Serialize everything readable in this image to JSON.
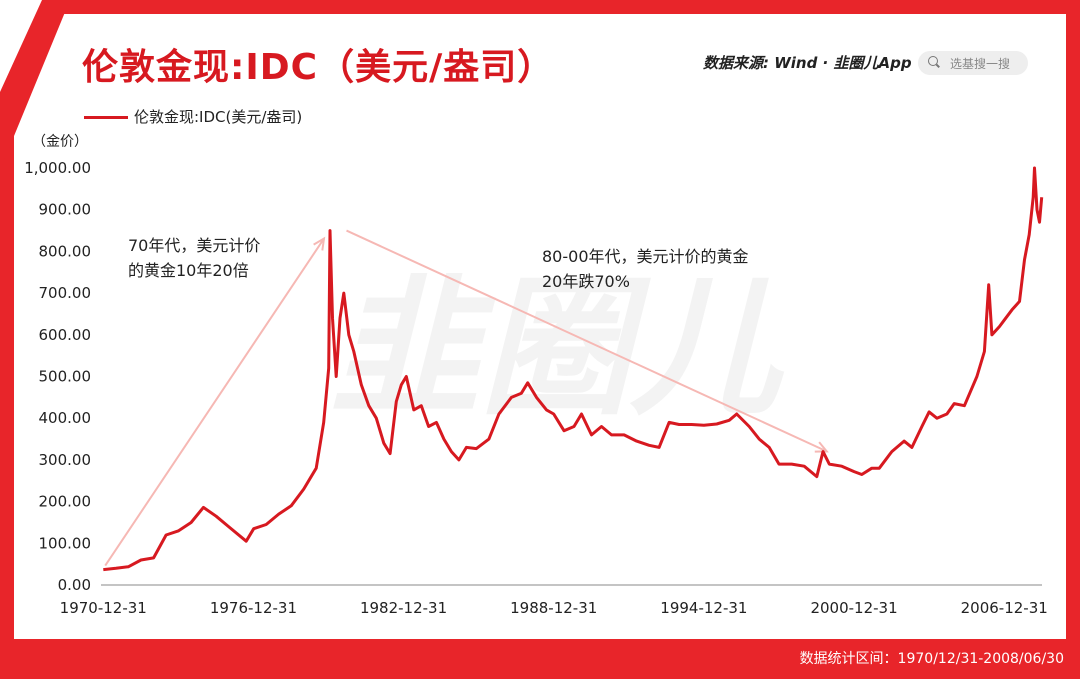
{
  "header": {
    "title": "伦敦金现:IDC（美元/盎司）",
    "source": "数据来源: Wind · 韭圈儿App",
    "search_placeholder": "选基搜一搜"
  },
  "footer": {
    "stat_range": "数据统计区间：1970/12/31-2008/06/30"
  },
  "watermark": "韭圈儿",
  "colors": {
    "accent": "#e8252a",
    "series": "#d71920",
    "annotation_arrow": "#f6b8b4"
  },
  "chart_data": {
    "type": "line",
    "legend": [
      "伦敦金现:IDC(美元/盎司)"
    ],
    "ylabel": "（金价）",
    "ylim": [
      0,
      1000
    ],
    "yticks": [
      "0.00",
      "100.00",
      "200.00",
      "300.00",
      "400.00",
      "500.00",
      "600.00",
      "700.00",
      "800.00",
      "900.00",
      "1,000.00"
    ],
    "xticks": [
      "1970-12-31",
      "1976-12-31",
      "1982-12-31",
      "1988-12-31",
      "1994-12-31",
      "2000-12-31",
      "2006-12-31"
    ],
    "xlim": [
      1970.9,
      2008.5
    ],
    "series": [
      {
        "name": "伦敦金现:IDC(美元/盎司)",
        "points": [
          [
            1970.99,
            37
          ],
          [
            1971.5,
            40
          ],
          [
            1972.0,
            44
          ],
          [
            1972.5,
            60
          ],
          [
            1973.0,
            65
          ],
          [
            1973.5,
            120
          ],
          [
            1974.0,
            130
          ],
          [
            1974.5,
            150
          ],
          [
            1974.99,
            186
          ],
          [
            1975.5,
            165
          ],
          [
            1976.0,
            140
          ],
          [
            1976.7,
            105
          ],
          [
            1977.0,
            135
          ],
          [
            1977.5,
            145
          ],
          [
            1978.0,
            170
          ],
          [
            1978.5,
            190
          ],
          [
            1979.0,
            230
          ],
          [
            1979.5,
            280
          ],
          [
            1979.8,
            390
          ],
          [
            1980.0,
            520
          ],
          [
            1980.05,
            850
          ],
          [
            1980.15,
            640
          ],
          [
            1980.3,
            500
          ],
          [
            1980.45,
            640
          ],
          [
            1980.6,
            700
          ],
          [
            1980.8,
            600
          ],
          [
            1981.0,
            560
          ],
          [
            1981.3,
            480
          ],
          [
            1981.6,
            430
          ],
          [
            1981.9,
            400
          ],
          [
            1982.2,
            340
          ],
          [
            1982.45,
            315
          ],
          [
            1982.7,
            440
          ],
          [
            1982.9,
            480
          ],
          [
            1983.1,
            500
          ],
          [
            1983.4,
            420
          ],
          [
            1983.7,
            430
          ],
          [
            1983.99,
            380
          ],
          [
            1984.3,
            390
          ],
          [
            1984.6,
            350
          ],
          [
            1984.9,
            320
          ],
          [
            1985.2,
            300
          ],
          [
            1985.5,
            330
          ],
          [
            1985.9,
            327
          ],
          [
            1986.4,
            350
          ],
          [
            1986.8,
            410
          ],
          [
            1987.3,
            450
          ],
          [
            1987.7,
            460
          ],
          [
            1987.95,
            485
          ],
          [
            1988.3,
            450
          ],
          [
            1988.7,
            420
          ],
          [
            1988.99,
            410
          ],
          [
            1989.4,
            370
          ],
          [
            1989.8,
            380
          ],
          [
            1990.1,
            410
          ],
          [
            1990.5,
            360
          ],
          [
            1990.9,
            380
          ],
          [
            1991.3,
            360
          ],
          [
            1991.8,
            360
          ],
          [
            1992.3,
            345
          ],
          [
            1992.8,
            335
          ],
          [
            1993.2,
            330
          ],
          [
            1993.6,
            390
          ],
          [
            1994.0,
            385
          ],
          [
            1994.5,
            385
          ],
          [
            1994.99,
            383
          ],
          [
            1995.5,
            386
          ],
          [
            1996.0,
            395
          ],
          [
            1996.3,
            410
          ],
          [
            1996.8,
            380
          ],
          [
            1997.2,
            350
          ],
          [
            1997.6,
            330
          ],
          [
            1997.99,
            290
          ],
          [
            1998.5,
            290
          ],
          [
            1999.0,
            285
          ],
          [
            1999.5,
            260
          ],
          [
            1999.75,
            320
          ],
          [
            2000.0,
            290
          ],
          [
            2000.5,
            285
          ],
          [
            2000.99,
            272
          ],
          [
            2001.3,
            265
          ],
          [
            2001.7,
            280
          ],
          [
            2002.0,
            280
          ],
          [
            2002.5,
            320
          ],
          [
            2002.99,
            345
          ],
          [
            2003.3,
            330
          ],
          [
            2003.7,
            380
          ],
          [
            2003.99,
            415
          ],
          [
            2004.3,
            400
          ],
          [
            2004.7,
            410
          ],
          [
            2004.99,
            435
          ],
          [
            2005.4,
            430
          ],
          [
            2005.9,
            500
          ],
          [
            2006.2,
            560
          ],
          [
            2006.37,
            720
          ],
          [
            2006.5,
            600
          ],
          [
            2006.8,
            620
          ],
          [
            2006.99,
            635
          ],
          [
            2007.3,
            660
          ],
          [
            2007.6,
            680
          ],
          [
            2007.8,
            780
          ],
          [
            2007.99,
            840
          ],
          [
            2008.15,
            930
          ],
          [
            2008.2,
            1000
          ],
          [
            2008.3,
            900
          ],
          [
            2008.4,
            870
          ],
          [
            2008.49,
            930
          ]
        ]
      }
    ],
    "annotations": [
      {
        "text": [
          "70年代，美元计价",
          "的黄金10年20倍"
        ]
      },
      {
        "text": [
          "80-00年代，美元计价的黄金",
          "20年跌70%"
        ]
      }
    ]
  }
}
